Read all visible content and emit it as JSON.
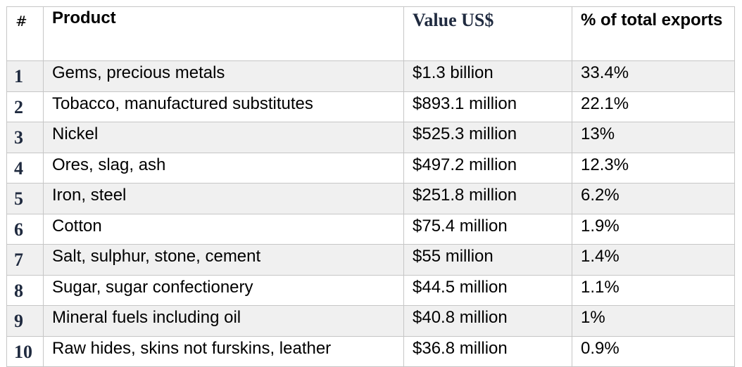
{
  "table": {
    "headers": {
      "num": "#",
      "product": "Product",
      "value": "Value US$",
      "pct": "% of total exports"
    },
    "rows": [
      {
        "num": "1",
        "product": "Gems, precious metals",
        "value": "$1.3 billion",
        "pct": "33.4%"
      },
      {
        "num": "2",
        "product": "Tobacco, manufactured substitutes",
        "value": "$893.1 million",
        "pct": "22.1%"
      },
      {
        "num": "3",
        "product": "Nickel",
        "value": "$525.3 million",
        "pct": "13%"
      },
      {
        "num": "4",
        "product": "Ores, slag, ash",
        "value": "$497.2 million",
        "pct": "12.3%"
      },
      {
        "num": "5",
        "product": "Iron, steel",
        "value": "$251.8 million",
        "pct": "6.2%"
      },
      {
        "num": "6",
        "product": "Cotton",
        "value": "$75.4 million",
        "pct": "1.9%"
      },
      {
        "num": "7",
        "product": "Salt, sulphur, stone, cement",
        "value": "$55 million",
        "pct": "1.4%"
      },
      {
        "num": "8",
        "product": "Sugar, sugar confectionery",
        "value": "$44.5 million",
        "pct": "1.1%"
      },
      {
        "num": "9",
        "product": "Mineral fuels including oil",
        "value": "$40.8 million",
        "pct": "1%"
      },
      {
        "num": "10",
        "product": "Raw hides, skins not furskins, leather",
        "value": "$36.8 million",
        "pct": "0.9%"
      }
    ]
  },
  "colors": {
    "border": "#c6c6c6",
    "shaded_row": "#f0f0f0",
    "serif_accent": "#1f2a3f"
  }
}
